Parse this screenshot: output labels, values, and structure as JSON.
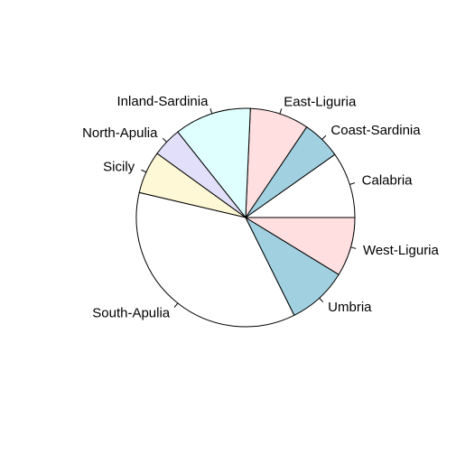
{
  "chart_data": {
    "type": "pie",
    "start_angle_deg": 0,
    "direction": "counterclockwise",
    "slices": [
      {
        "label": "Calabria",
        "value": 56,
        "color": "#ffffff"
      },
      {
        "label": "Coast-Sardinia",
        "value": 33,
        "color": "#a1d0e0"
      },
      {
        "label": "East-Liguria",
        "value": 50,
        "color": "#ffdfdf"
      },
      {
        "label": "Inland-Sardinia",
        "value": 65,
        "color": "#dfffff"
      },
      {
        "label": "North-Apulia",
        "value": 25,
        "color": "#e1dff9"
      },
      {
        "label": "Sicily",
        "value": 36,
        "color": "#fff8d6"
      },
      {
        "label": "South-Apulia",
        "value": 206,
        "color": "#ffffff"
      },
      {
        "label": "Umbria",
        "value": 51,
        "color": "#a1d0e0"
      },
      {
        "label": "West-Liguria",
        "value": 50,
        "color": "#ffdfdf"
      }
    ]
  }
}
